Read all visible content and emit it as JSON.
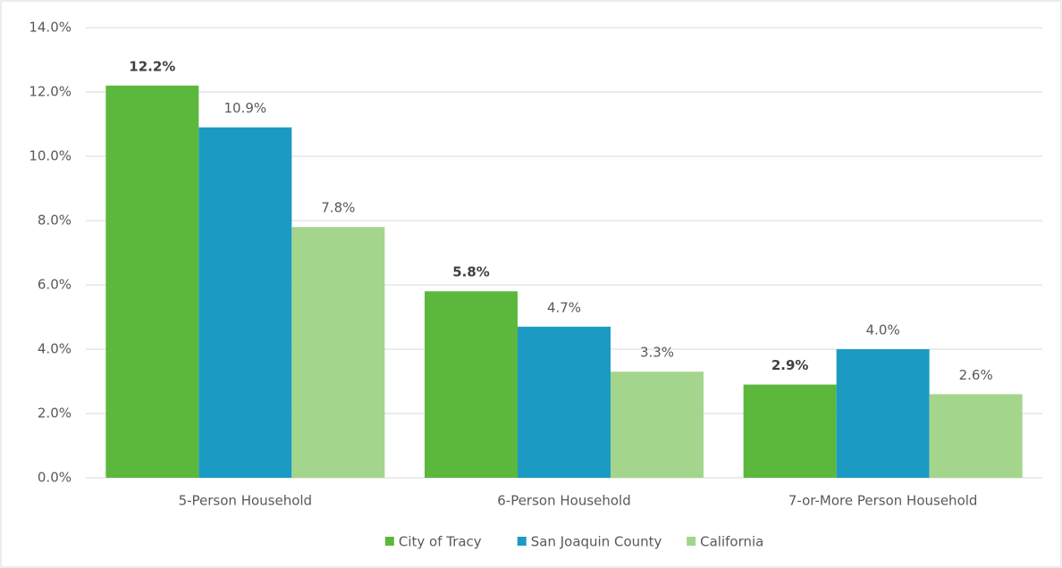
{
  "chart_data": {
    "type": "bar",
    "categories": [
      "5-Person Household",
      "6-Person Household",
      "7-or-More Person Household"
    ],
    "series": [
      {
        "name": "City of Tracy",
        "color": "#5cb83d",
        "values": [
          12.2,
          5.8,
          2.9
        ],
        "value_labels": [
          "12.2%",
          "5.8%",
          "2.9%"
        ]
      },
      {
        "name": "San Joaquin County",
        "color": "#1b9bc3",
        "values": [
          10.9,
          4.7,
          4.0
        ],
        "value_labels": [
          "10.9%",
          "4.7%",
          "4.0%"
        ]
      },
      {
        "name": "California",
        "color": "#a4d58c",
        "values": [
          7.8,
          3.3,
          2.6
        ],
        "value_labels": [
          "7.8%",
          "3.3%",
          "2.6%"
        ]
      }
    ],
    "ylim": [
      0,
      14
    ],
    "yticks": [
      {
        "value": 0,
        "label": "0.0%"
      },
      {
        "value": 2,
        "label": "2.0%"
      },
      {
        "value": 4,
        "label": "4.0%"
      },
      {
        "value": 6,
        "label": "6.0%"
      },
      {
        "value": 8,
        "label": "8.0%"
      },
      {
        "value": 10,
        "label": "10.0%"
      },
      {
        "value": 12,
        "label": "12.0%"
      },
      {
        "value": 14,
        "label": "14.0%"
      }
    ],
    "grid": true,
    "legend": "bottom"
  }
}
